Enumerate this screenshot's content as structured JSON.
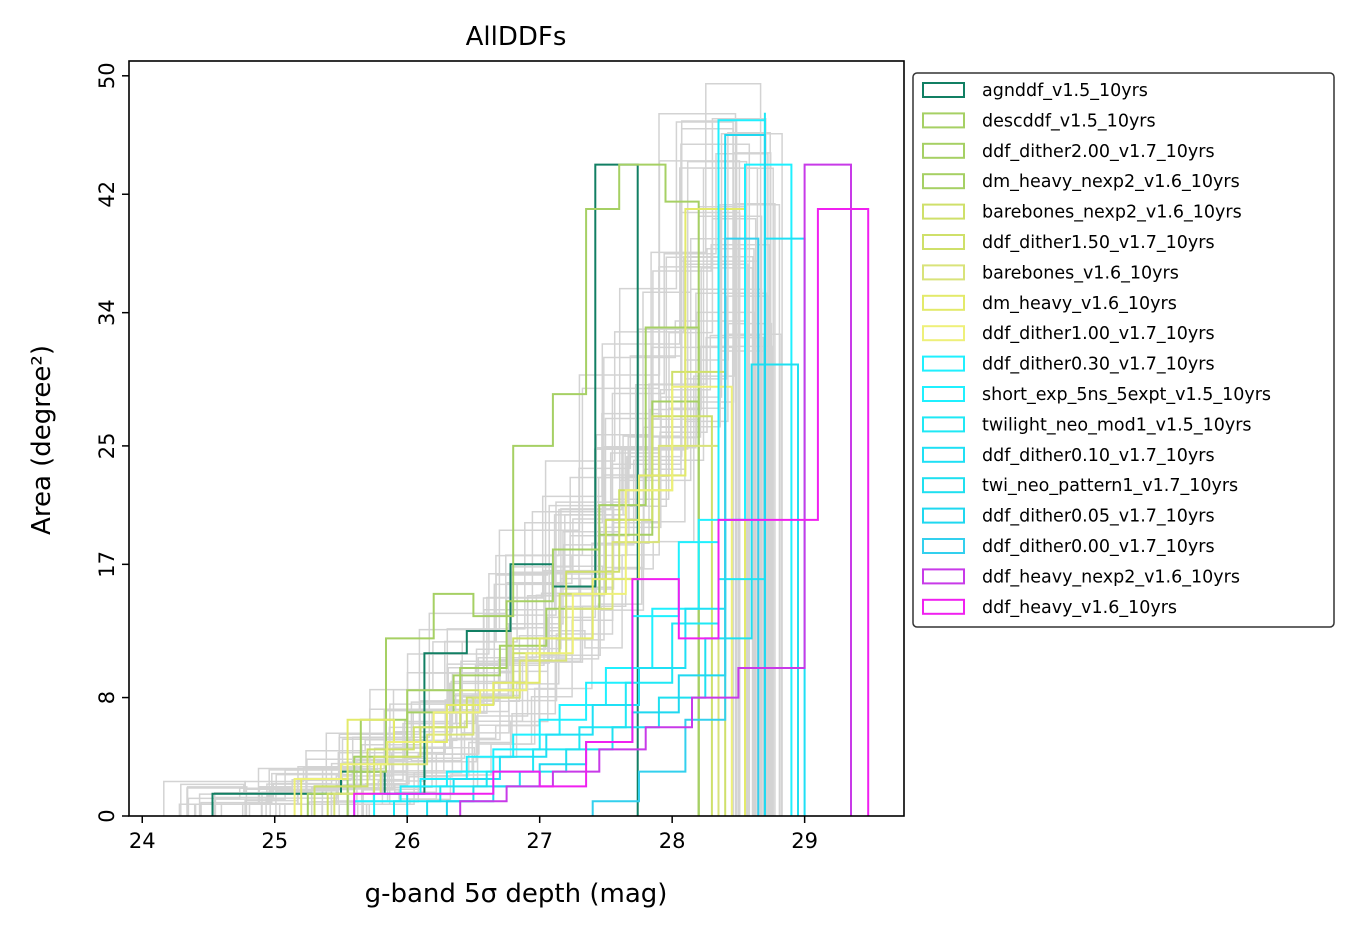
{
  "chart_data": {
    "type": "step-histogram",
    "title": "AllDDFs",
    "xlabel": "g-band 5σ depth (mag)",
    "ylabel": "Area (degree²)",
    "xlim": [
      23.9,
      29.75
    ],
    "ylim": [
      0,
      51
    ],
    "x_ticks": [
      "24",
      "25",
      "26",
      "27",
      "28",
      "29"
    ],
    "y_ticks": [
      "0",
      "8",
      "17",
      "25",
      "34",
      "42",
      "50"
    ],
    "grid": false,
    "legend_position": "right, outside plot",
    "background_histograms_color": "#d3d3d3",
    "series": [
      {
        "name": "agnddf_v1.5_10yrs",
        "color": "#117f63",
        "edges": [
          24.53,
          25.5,
          25.83,
          26.13,
          26.45,
          26.78,
          27.1,
          27.42,
          27.74
        ],
        "counts": [
          1.5,
          3,
          1.5,
          11,
          12.5,
          17,
          15.5,
          44
        ]
      },
      {
        "name": "descddf_v1.5_10yrs",
        "color": "#a6d064",
        "edges": [
          25.55,
          25.84,
          26.2,
          26.5,
          26.8,
          27.1,
          27.35,
          27.6,
          27.95,
          28.2
        ],
        "counts": [
          3,
          12,
          15,
          13.5,
          25,
          28.5,
          41,
          44,
          41.5
        ]
      },
      {
        "name": "ddf_dither2.00_v1.7_10yrs",
        "color": "#a6d064",
        "edges": [
          25.3,
          25.65,
          26.0,
          26.4,
          26.75,
          27.1,
          27.45,
          27.8,
          28.2
        ],
        "counts": [
          2,
          6.5,
          8.5,
          10,
          14.5,
          18,
          21,
          33
        ]
      },
      {
        "name": "dm_heavy_nexp2_v1.6_10yrs",
        "color": "#a6d064",
        "edges": [
          25.25,
          25.6,
          26.0,
          26.35,
          26.7,
          27.05,
          27.45,
          27.85,
          28.2
        ],
        "counts": [
          1.5,
          4,
          7,
          9.5,
          11.5,
          14,
          19,
          28
        ]
      },
      {
        "name": "barebones_nexp2_v1.6_10yrs",
        "color": "#cfe06a",
        "edges": [
          25.3,
          25.7,
          26.05,
          26.4,
          26.8,
          27.2,
          27.6,
          28.0,
          28.4
        ],
        "counts": [
          2,
          4.5,
          6,
          8.5,
          12,
          16.5,
          22,
          30
        ]
      },
      {
        "name": "ddf_dither1.50_v1.7_10yrs",
        "color": "#cfe06a",
        "edges": [
          25.4,
          25.75,
          26.1,
          26.45,
          26.8,
          27.15,
          27.5,
          27.85,
          28.3
        ],
        "counts": [
          1.5,
          4,
          6,
          8,
          11,
          15,
          20,
          27
        ]
      },
      {
        "name": "barebones_v1.6_10yrs",
        "color": "#d9e37a",
        "edges": [
          25.45,
          25.8,
          26.15,
          26.5,
          26.85,
          27.2,
          27.55,
          27.9,
          28.35
        ],
        "counts": [
          1.5,
          3.5,
          5.5,
          8,
          10.5,
          14,
          18.5,
          25
        ]
      },
      {
        "name": "dm_heavy_v1.6_10yrs",
        "color": "#e3ea6a",
        "edges": [
          25.2,
          25.55,
          25.9,
          26.3,
          26.65,
          27.0,
          27.4,
          27.75,
          28.1,
          28.55
        ],
        "counts": [
          2.5,
          6.5,
          5,
          7.5,
          9,
          12,
          16,
          23,
          41
        ]
      },
      {
        "name": "ddf_dither1.00_v1.7_10yrs",
        "color": "#eef07a",
        "edges": [
          25.15,
          25.5,
          25.85,
          26.2,
          26.55,
          26.9,
          27.25,
          27.65,
          28.0,
          28.45
        ],
        "counts": [
          2.5,
          3.5,
          5,
          7,
          8.5,
          11,
          15,
          22,
          29
        ]
      },
      {
        "name": "ddf_dither0.30_v1.7_10yrs",
        "color": "#1ff0ff",
        "edges": [
          25.6,
          25.95,
          26.3,
          26.65,
          27.0,
          27.35,
          27.7,
          28.05,
          28.35,
          28.7
        ],
        "counts": [
          1,
          2,
          3,
          4.5,
          6.5,
          9,
          13.5,
          18.5,
          47
        ]
      },
      {
        "name": "short_exp_5ns_5expt_v1.5_10yrs",
        "color": "#1ff0ff",
        "edges": [
          25.75,
          26.1,
          26.45,
          26.8,
          27.15,
          27.5,
          27.85,
          28.2,
          28.55,
          28.9
        ],
        "counts": [
          1.5,
          2.5,
          4,
          5.5,
          7.5,
          10,
          14,
          20,
          44
        ]
      },
      {
        "name": "twilight_neo_mod1_v1.5_10yrs",
        "color": "#1fe8f5",
        "edges": [
          25.9,
          26.25,
          26.6,
          26.95,
          27.3,
          27.65,
          28.0,
          28.35,
          28.7
        ],
        "counts": [
          1,
          2,
          3,
          4.5,
          6,
          9,
          13,
          16,
          47.5
        ]
      },
      {
        "name": "ddf_dither0.10_v1.7_10yrs",
        "color": "#1fe0f5",
        "edges": [
          26.0,
          26.35,
          26.7,
          27.05,
          27.4,
          27.75,
          28.1,
          28.4,
          28.7,
          29.0
        ],
        "counts": [
          1.5,
          2.5,
          4,
          5.5,
          7.5,
          10,
          14,
          20,
          39
        ]
      },
      {
        "name": "twi_neo_pattern1_v1.7_10yrs",
        "color": "#1fe0f0",
        "edges": [
          26.15,
          26.5,
          26.85,
          27.2,
          27.55,
          27.9,
          28.25,
          28.6,
          28.95
        ],
        "counts": [
          1,
          2,
          3,
          4.5,
          6,
          8,
          12,
          30.5
        ]
      },
      {
        "name": "ddf_dither0.05_v1.7_10yrs",
        "color": "#1fd8f0",
        "edges": [
          26.3,
          26.65,
          27.0,
          27.35,
          27.7,
          28.05,
          28.4,
          28.7
        ],
        "counts": [
          1,
          2,
          3.5,
          5,
          7,
          9.5,
          46
        ]
      },
      {
        "name": "ddf_dither0.00_v1.7_10yrs",
        "color": "#33d0ee",
        "edges": [
          27.4,
          27.75,
          28.1,
          28.4,
          28.65
        ],
        "counts": [
          1,
          3,
          6.5,
          39
        ]
      },
      {
        "name": "ddf_heavy_nexp2_v1.6_10yrs",
        "color": "#c83ae8",
        "edges": [
          26.4,
          26.75,
          27.1,
          27.45,
          27.8,
          28.15,
          28.5,
          29.0,
          29.35
        ],
        "counts": [
          1,
          2,
          3,
          4.5,
          6,
          8,
          10,
          44
        ]
      },
      {
        "name": "ddf_heavy_v1.6_10yrs",
        "color": "#f020f0",
        "edges": [
          25.6,
          25.95,
          26.3,
          26.65,
          27.0,
          27.35,
          27.7,
          28.05,
          28.35,
          28.7,
          29.1,
          29.48
        ],
        "counts": [
          1.5,
          1.5,
          1.5,
          3,
          2,
          5,
          16,
          12,
          20,
          20,
          41
        ]
      }
    ]
  }
}
